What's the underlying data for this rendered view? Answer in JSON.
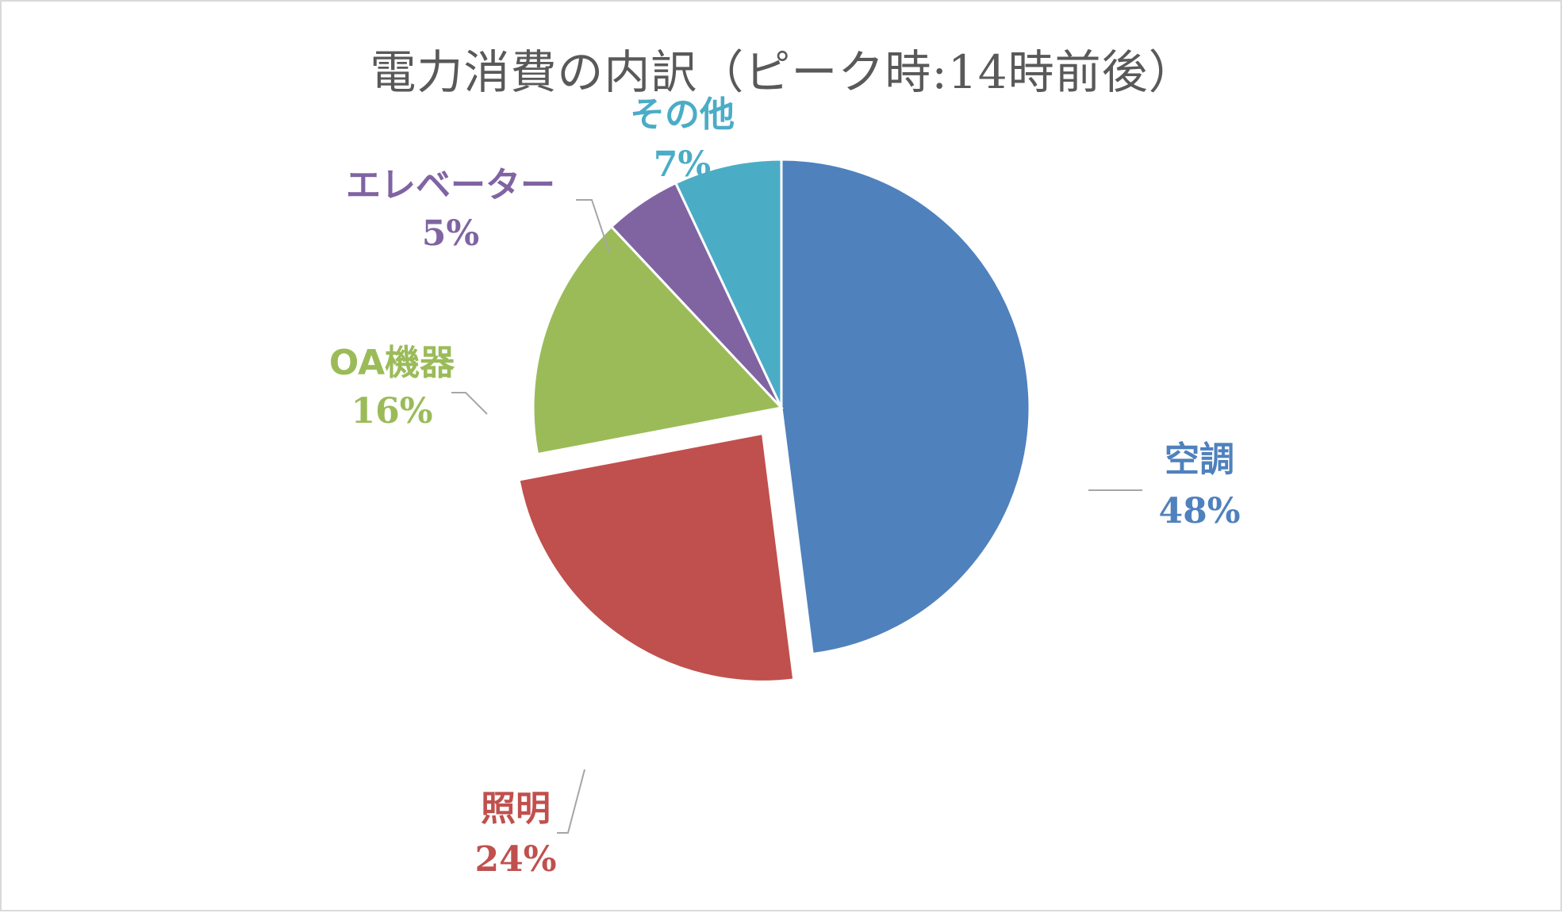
{
  "chart_data": {
    "type": "pie",
    "title": "電力消費の内訳（ピーク時:14時前後）",
    "slices": [
      {
        "name": "空調",
        "value": 48,
        "value_label": "48%",
        "color": "#4f81bd",
        "exploded": false
      },
      {
        "name": "照明",
        "value": 24,
        "value_label": "24%",
        "color": "#c0504d",
        "exploded": true
      },
      {
        "name": "OA機器",
        "value": 16,
        "value_label": "16%",
        "color": "#9bbb59",
        "exploded": false
      },
      {
        "name": "エレベーター",
        "value": 5,
        "value_label": "5%",
        "color": "#8064a2",
        "exploded": false
      },
      {
        "name": "その他",
        "value": 7,
        "value_label": "7%",
        "color": "#4bacc6",
        "exploded": false
      }
    ],
    "start": "12 o'clock",
    "direction": "clockwise",
    "legend": "none",
    "label_line_color": "#a6a6a6"
  }
}
